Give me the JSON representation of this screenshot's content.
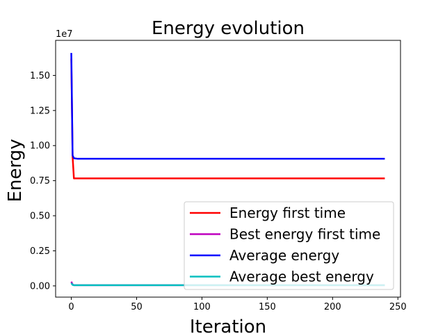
{
  "chart_data": {
    "type": "line",
    "title": "Energy evolution",
    "xlabel": "Iteration",
    "ylabel": "Energy",
    "offset_label": "1e7",
    "xlim": [
      -12,
      252
    ],
    "ylim": [
      -0.08,
      1.75
    ],
    "xticks": [
      0,
      50,
      100,
      150,
      200,
      250
    ],
    "xtick_labels": [
      "0",
      "50",
      "100",
      "150",
      "200",
      "250"
    ],
    "yticks": [
      0,
      0.25,
      0.5,
      0.75,
      1.0,
      1.25,
      1.5
    ],
    "ytick_labels": [
      "0.00",
      "0.25",
      "0.50",
      "0.75",
      "1.00",
      "1.25",
      "1.50"
    ],
    "grid": false,
    "legend_position": "lower-right",
    "series": [
      {
        "name": "Energy first time",
        "color": "#ff0000",
        "x": [
          0,
          1,
          2,
          5,
          240
        ],
        "y": [
          1.62,
          0.92,
          0.766,
          0.766,
          0.766
        ]
      },
      {
        "name": "Best energy first time",
        "color": "#bf00bf",
        "x": [
          0,
          1,
          2,
          240
        ],
        "y": [
          0.03,
          0.01,
          0.005,
          0.005
        ]
      },
      {
        "name": "Average energy",
        "color": "#0000ff",
        "x": [
          0,
          1,
          2,
          5,
          240
        ],
        "y": [
          1.66,
          0.93,
          0.91,
          0.906,
          0.906
        ]
      },
      {
        "name": "Average best energy",
        "color": "#00bfbf",
        "x": [
          0,
          1,
          2,
          240
        ],
        "y": [
          0.02,
          0.007,
          0.005,
          0.005
        ]
      }
    ]
  }
}
